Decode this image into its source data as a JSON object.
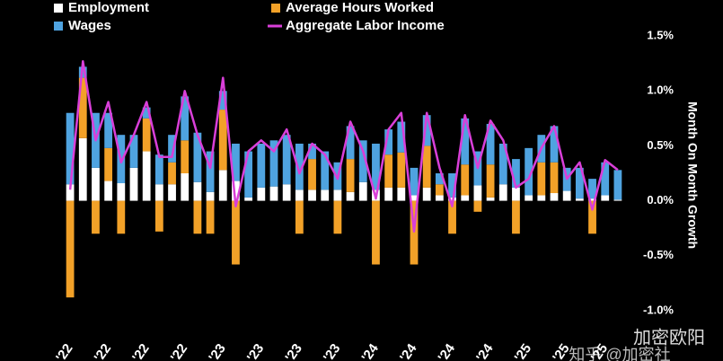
{
  "chart_data": {
    "type": "bar",
    "stacked": true,
    "y_label": "Month On Month Growth",
    "categories": [
      "'22",
      null,
      null,
      "'22",
      null,
      null,
      "'22",
      null,
      null,
      "'22",
      null,
      null,
      "'23",
      null,
      null,
      "'23",
      null,
      null,
      "'23",
      null,
      null,
      "'23",
      null,
      null,
      "'24",
      null,
      null,
      "'24",
      null,
      null,
      "'24",
      null,
      null,
      "'24",
      null,
      null,
      "'25",
      null,
      null,
      "'25",
      null,
      null,
      "'25",
      null
    ],
    "series": [
      {
        "name": "Employment",
        "color": "#ffffff",
        "values": [
          0.15,
          0.57,
          0.3,
          0.18,
          0.16,
          0.3,
          0.45,
          0.15,
          0.15,
          0.25,
          0.17,
          0.08,
          0.28,
          0.18,
          0.03,
          0.12,
          0.13,
          0.15,
          0.1,
          0.1,
          0.1,
          0.1,
          0.08,
          0.17,
          0.1,
          0.12,
          0.12,
          0.05,
          0.12,
          0.05,
          0.03,
          0.05,
          0.14,
          0.03,
          0.15,
          0.12,
          0.05,
          0.05,
          0.07,
          0.09,
          0.02,
          0.02,
          0.05,
          0.01
        ]
      },
      {
        "name": "Average Hours Worked",
        "color": "#f2a128",
        "values": [
          -0.88,
          0.55,
          -0.3,
          0.3,
          -0.3,
          0,
          0.3,
          -0.28,
          0.2,
          0.3,
          -0.3,
          -0.3,
          0.55,
          -0.58,
          0,
          0,
          0,
          0,
          -0.3,
          0.28,
          0,
          -0.3,
          0.3,
          0,
          -0.58,
          0.3,
          0.32,
          -0.58,
          0.38,
          0.1,
          -0.3,
          0.28,
          -0.1,
          0.3,
          0,
          -0.3,
          0,
          0.3,
          0.28,
          0,
          0,
          -0.3,
          0,
          0
        ]
      },
      {
        "name": "Wages",
        "color": "#4fa3e0",
        "values": [
          0.65,
          0.1,
          0.5,
          0.32,
          0.44,
          0.3,
          0.1,
          0.27,
          0.25,
          0.4,
          0.45,
          0.37,
          0.17,
          0.34,
          0.42,
          0.4,
          0.42,
          0.45,
          0.42,
          0.14,
          0.35,
          0.25,
          0.3,
          0.38,
          0.42,
          0.23,
          0.28,
          0.25,
          0.28,
          0.1,
          0.22,
          0.42,
          0.31,
          0.37,
          0.37,
          0.26,
          0.43,
          0.25,
          0.33,
          0.21,
          0.28,
          0.18,
          0.3,
          0.27
        ]
      },
      {
        "name": "Aggregate Labor Income",
        "color": "#d93fd9",
        "type": "line",
        "values": [
          0.1,
          1.27,
          0.55,
          0.9,
          0.35,
          0.6,
          0.9,
          0.4,
          0.4,
          1.0,
          0.6,
          0.3,
          1.12,
          -0.05,
          0.45,
          0.55,
          0.45,
          0.65,
          0.25,
          0.52,
          0.42,
          0.2,
          0.72,
          0.45,
          0.02,
          0.65,
          0.8,
          -0.28,
          0.8,
          0.3,
          -0.05,
          0.78,
          0.3,
          0.73,
          0.55,
          0.12,
          0.2,
          0.48,
          0.68,
          0.2,
          0.35,
          -0.08,
          0.37,
          0.28
        ]
      }
    ],
    "ylim": [
      -1.05,
      1.55
    ],
    "yticks": [
      {
        "value": -1.0,
        "label": "-1.0%"
      },
      {
        "value": -0.5,
        "label": "-0.5%"
      },
      {
        "value": 0.0,
        "label": "0.0%"
      },
      {
        "value": 0.5,
        "label": "0.5%"
      },
      {
        "value": 1.0,
        "label": "1.0%"
      },
      {
        "value": 1.5,
        "label": "1.5%"
      }
    ],
    "grid": false,
    "watermarks": [
      "加密欧阳",
      "知乎 @加密社"
    ]
  }
}
